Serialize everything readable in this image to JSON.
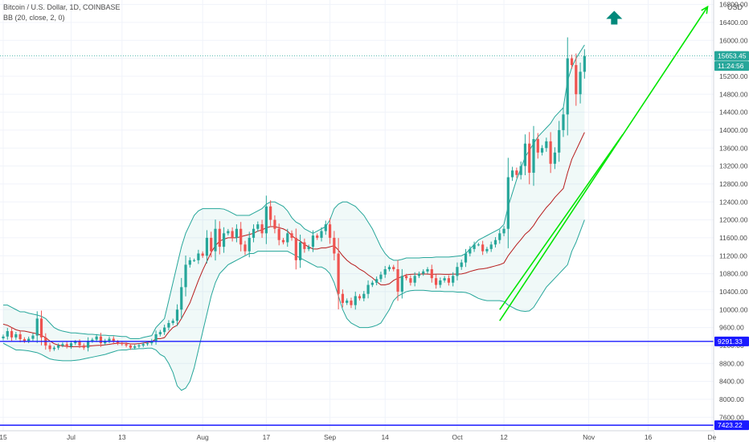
{
  "legend": {
    "symbol_line": "Bitcoin / U.S. Dollar, 1D, COINBASE",
    "indicator_line": "BB (20, close, 2, 0)"
  },
  "header_corner": {
    "left_text": "15",
    "right_text": "USD"
  },
  "chart_data": {
    "type": "candlestick",
    "title": "Bitcoin / U.S. Dollar, 1D, COINBASE",
    "indicator": "BB (20, close, 2, 0)",
    "currency": "USD",
    "ylim": [
      7300,
      16900
    ],
    "y_ticks": [
      7600,
      8000,
      8400,
      8800,
      9200,
      9600,
      10000,
      10400,
      10800,
      11200,
      11600,
      12000,
      12400,
      12800,
      13200,
      13600,
      14000,
      14400,
      14800,
      15200,
      15600,
      16000,
      16400,
      16800
    ],
    "y_tick_labels": [
      "7600.00",
      "8000.00",
      "8400.00",
      "8800.00",
      "9200.00",
      "9600.00",
      "10000.00",
      "10400.00",
      "10800.00",
      "11200.00",
      "11600.00",
      "12000.00",
      "12400.00",
      "12800.00",
      "13200.00",
      "13600.00",
      "14000.00",
      "14400.00",
      "14800.00",
      "15200.00",
      "15600.00",
      "16000.00",
      "16400.00",
      "16800.00"
    ],
    "x_labels": [
      {
        "label": "15",
        "index": 0
      },
      {
        "label": "Jul",
        "index": 16
      },
      {
        "label": "13",
        "index": 28
      },
      {
        "label": "Aug",
        "index": 47
      },
      {
        "label": "17",
        "index": 62
      },
      {
        "label": "Sep",
        "index": 77
      },
      {
        "label": "14",
        "index": 90
      },
      {
        "label": "Oct",
        "index": 107
      },
      {
        "label": "12",
        "index": 118
      },
      {
        "label": "Nov",
        "index": 138
      },
      {
        "label": "16",
        "index": 152
      },
      {
        "label": "De",
        "index": 167
      }
    ],
    "price_levels": [
      {
        "label": "15653.45",
        "value": 15653.45,
        "color": "#26a69a",
        "line": "dotted"
      },
      {
        "label": "11:24:56",
        "value": 15430,
        "color": "#26a69a",
        "line": "none"
      },
      {
        "label": "9291.33",
        "value": 9291.33,
        "color": "#1a1aff",
        "line": "solid"
      },
      {
        "label": "7423.22",
        "value": 7423.22,
        "color": "#1a1aff",
        "line": "solid"
      }
    ],
    "closes": [
      9400,
      9520,
      9380,
      9450,
      9340,
      9300,
      9350,
      9420,
      9800,
      9380,
      9200,
      9120,
      9150,
      9200,
      9230,
      9180,
      9250,
      9280,
      9200,
      9150,
      9300,
      9330,
      9400,
      9250,
      9300,
      9350,
      9280,
      9250,
      9230,
      9200,
      9150,
      9180,
      9200,
      9230,
      9250,
      9300,
      9450,
      9500,
      9600,
      9700,
      9750,
      10000,
      10500,
      11000,
      11100,
      11100,
      11250,
      11200,
      11600,
      11300,
      11800,
      11400,
      11700,
      11750,
      11600,
      11800,
      11450,
      11300,
      11600,
      11800,
      11900,
      11700,
      12300,
      12000,
      11800,
      11550,
      11500,
      11700,
      11600,
      11100,
      11500,
      11350,
      11400,
      11650,
      11600,
      11750,
      11900,
      11600,
      11250,
      10350,
      10150,
      10200,
      10100,
      10300,
      10250,
      10350,
      10550,
      10600,
      10680,
      10780,
      10900,
      10950,
      10900,
      10400,
      10750,
      10700,
      10600,
      10750,
      10800,
      10850,
      10900,
      10700,
      10550,
      10650,
      10700,
      10600,
      10750,
      10950,
      11050,
      11250,
      11350,
      11450,
      11450,
      11300,
      11350,
      11450,
      11550,
      11700,
      11800,
      12950,
      13100,
      13000,
      13200,
      13700,
      13050,
      13800,
      13500,
      13600,
      13750,
      13250,
      13500,
      14000,
      14350,
      15600,
      15450,
      14800,
      15300,
      15650
    ],
    "bb_upper": [
      10100,
      10100,
      10050,
      10000,
      9950,
      9950,
      9920,
      9900,
      9880,
      9850,
      9800,
      9700,
      9600,
      9550,
      9520,
      9500,
      9480,
      9480,
      9470,
      9460,
      9450,
      9450,
      9440,
      9430,
      9430,
      9420,
      9420,
      9410,
      9400,
      9400,
      9350,
      9350,
      9350,
      9380,
      9400,
      9420,
      9600,
      9700,
      9800,
      10200,
      10600,
      11000,
      11400,
      11700,
      11900,
      12100,
      12200,
      12250,
      12250,
      12250,
      12250,
      12250,
      12240,
      12200,
      12150,
      12100,
      12100,
      12100,
      12100,
      12150,
      12200,
      12250,
      12350,
      12400,
      12400,
      12350,
      12300,
      12200,
      12050,
      11950,
      11900,
      11800,
      11750,
      11700,
      11750,
      11800,
      11850,
      12000,
      12250,
      12350,
      12400,
      12400,
      12350,
      12300,
      12200,
      12100,
      11950,
      11800,
      11600,
      11400,
      11250,
      11150,
      11100,
      11100,
      11120,
      11150,
      11150,
      11150,
      11150,
      11160,
      11160,
      11160,
      11170,
      11170,
      11170,
      11170,
      11180,
      11190,
      11200,
      11250,
      11350,
      11450,
      11550,
      11600,
      11650,
      11700,
      11750,
      11800,
      11900,
      12300,
      12600,
      12900,
      13150,
      13400,
      13550,
      13700,
      13850,
      13950,
      14050,
      14150,
      14300,
      14400,
      14500,
      15100,
      15400,
      15600,
      15750,
      15900
    ],
    "bb_lower": [
      9250,
      9200,
      9150,
      9100,
      9100,
      9090,
      9080,
      9060,
      9040,
      9000,
      8950,
      8900,
      8880,
      8870,
      8860,
      8860,
      8860,
      8870,
      8880,
      8900,
      8920,
      8940,
      8960,
      8980,
      9000,
      9030,
      9060,
      9090,
      9100,
      9100,
      9120,
      9120,
      9130,
      9130,
      9140,
      9140,
      9100,
      9000,
      8950,
      8800,
      8600,
      8300,
      8200,
      8250,
      8400,
      8700,
      9100,
      9500,
      9900,
      10300,
      10600,
      10800,
      10900,
      11000,
      11050,
      11100,
      11150,
      11200,
      11250,
      11250,
      11300,
      11300,
      11300,
      11300,
      11300,
      11300,
      11300,
      11300,
      11250,
      11200,
      11150,
      11100,
      11050,
      11000,
      10950,
      10950,
      10900,
      10800,
      10600,
      10300,
      10000,
      9800,
      9700,
      9650,
      9600,
      9600,
      9600,
      9620,
      9650,
      9700,
      9850,
      10000,
      10200,
      10300,
      10350,
      10400,
      10420,
      10430,
      10430,
      10430,
      10420,
      10410,
      10410,
      10410,
      10400,
      10400,
      10400,
      10390,
      10390,
      10380,
      10350,
      10300,
      10250,
      10220,
      10200,
      10200,
      10200,
      10200,
      10180,
      10100,
      10050,
      10000,
      9970,
      9960,
      9970,
      10050,
      10200,
      10350,
      10500,
      10600,
      10700,
      10800,
      10900,
      11000,
      11300,
      11500,
      11750,
      12000
    ]
  }
}
